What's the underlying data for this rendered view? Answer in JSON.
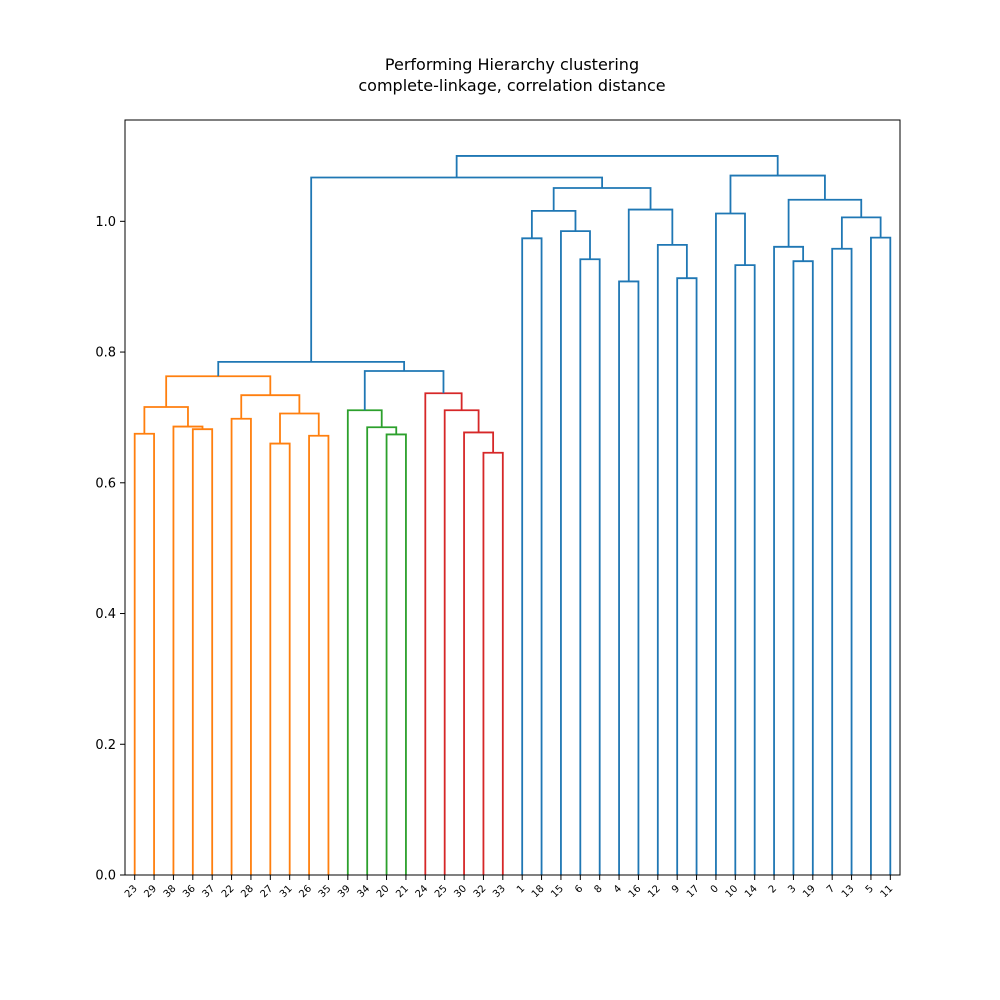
{
  "chart_data": {
    "type": "dendrogram",
    "title": [
      "Performing Hierarchy clustering",
      "complete-linkage, correlation distance"
    ],
    "xlabel": "",
    "ylabel": "",
    "ylim": [
      0,
      1.155
    ],
    "yticks": [
      0.0,
      0.2,
      0.4,
      0.6,
      0.8,
      1.0
    ],
    "ytick_labels": [
      "0.0",
      "0.2",
      "0.4",
      "0.6",
      "0.8",
      "1.0"
    ],
    "grid": false,
    "leaf_order": [
      "23",
      "29",
      "38",
      "36",
      "37",
      "22",
      "28",
      "27",
      "31",
      "26",
      "35",
      "39",
      "34",
      "20",
      "21",
      "24",
      "25",
      "30",
      "32",
      "33",
      "1",
      "18",
      "15",
      "6",
      "8",
      "4",
      "16",
      "12",
      "9",
      "17",
      "0",
      "10",
      "14",
      "2",
      "3",
      "19",
      "7",
      "13",
      "5",
      "11"
    ],
    "colors": {
      "orange": "#ff7f0e",
      "green": "#2ca02c",
      "red": "#d62728",
      "blue": "#1f77b4",
      "axis": "#000000"
    },
    "merges": [
      {
        "id": "m1",
        "left": "23",
        "right": "29",
        "height": 0.675,
        "color": "orange"
      },
      {
        "id": "m2",
        "left": "36",
        "right": "37",
        "height": 0.682,
        "color": "orange"
      },
      {
        "id": "m3",
        "left": "38",
        "right": "m2",
        "height": 0.686,
        "color": "orange"
      },
      {
        "id": "m4",
        "left": "m1",
        "right": "m3",
        "height": 0.716,
        "color": "orange"
      },
      {
        "id": "m5",
        "left": "22",
        "right": "28",
        "height": 0.698,
        "color": "orange"
      },
      {
        "id": "m6",
        "left": "27",
        "right": "31",
        "height": 0.66,
        "color": "orange"
      },
      {
        "id": "m7",
        "left": "26",
        "right": "35",
        "height": 0.672,
        "color": "orange"
      },
      {
        "id": "m8",
        "left": "m6",
        "right": "m7",
        "height": 0.706,
        "color": "orange"
      },
      {
        "id": "m9",
        "left": "m5",
        "right": "m8",
        "height": 0.734,
        "color": "orange"
      },
      {
        "id": "m10",
        "left": "m4",
        "right": "m9",
        "height": 0.763,
        "color": "orange"
      },
      {
        "id": "m11",
        "left": "20",
        "right": "21",
        "height": 0.674,
        "color": "green"
      },
      {
        "id": "m12",
        "left": "34",
        "right": "m11",
        "height": 0.685,
        "color": "green"
      },
      {
        "id": "m13",
        "left": "39",
        "right": "m12",
        "height": 0.711,
        "color": "green"
      },
      {
        "id": "m14",
        "left": "32",
        "right": "33",
        "height": 0.646,
        "color": "red"
      },
      {
        "id": "m15",
        "left": "30",
        "right": "m14",
        "height": 0.677,
        "color": "red"
      },
      {
        "id": "m16",
        "left": "25",
        "right": "m15",
        "height": 0.711,
        "color": "red"
      },
      {
        "id": "m17",
        "left": "24",
        "right": "m16",
        "height": 0.737,
        "color": "red"
      },
      {
        "id": "m18",
        "left": "m13",
        "right": "m17",
        "height": 0.771,
        "color": "blue"
      },
      {
        "id": "m19",
        "left": "m10",
        "right": "m18",
        "height": 0.785,
        "color": "blue"
      },
      {
        "id": "m20",
        "left": "1",
        "right": "18",
        "height": 0.974,
        "color": "blue"
      },
      {
        "id": "m21",
        "left": "6",
        "right": "8",
        "height": 0.942,
        "color": "blue"
      },
      {
        "id": "m22",
        "left": "15",
        "right": "m21",
        "height": 0.985,
        "color": "blue"
      },
      {
        "id": "m23",
        "left": "m20",
        "right": "m22",
        "height": 1.016,
        "color": "blue"
      },
      {
        "id": "m24",
        "left": "4",
        "right": "16",
        "height": 0.908,
        "color": "blue"
      },
      {
        "id": "m25",
        "left": "9",
        "right": "17",
        "height": 0.913,
        "color": "blue"
      },
      {
        "id": "m26",
        "left": "12",
        "right": "m25",
        "height": 0.964,
        "color": "blue"
      },
      {
        "id": "m27",
        "left": "m24",
        "right": "m26",
        "height": 1.018,
        "color": "blue"
      },
      {
        "id": "m28",
        "left": "m23",
        "right": "m27",
        "height": 1.051,
        "color": "blue"
      },
      {
        "id": "m29",
        "left": "m19",
        "right": "m28",
        "height": 1.067,
        "color": "blue"
      },
      {
        "id": "m30",
        "left": "10",
        "right": "14",
        "height": 0.933,
        "color": "blue"
      },
      {
        "id": "m31",
        "left": "0",
        "right": "m30",
        "height": 1.012,
        "color": "blue"
      },
      {
        "id": "m32",
        "left": "3",
        "right": "19",
        "height": 0.939,
        "color": "blue"
      },
      {
        "id": "m33",
        "left": "2",
        "right": "m32",
        "height": 0.961,
        "color": "blue"
      },
      {
        "id": "m34",
        "left": "7",
        "right": "13",
        "height": 0.958,
        "color": "blue"
      },
      {
        "id": "m35",
        "left": "5",
        "right": "11",
        "height": 0.975,
        "color": "blue"
      },
      {
        "id": "m36",
        "left": "m34",
        "right": "m35",
        "height": 1.006,
        "color": "blue"
      },
      {
        "id": "m37",
        "left": "m33",
        "right": "m36",
        "height": 1.033,
        "color": "blue"
      },
      {
        "id": "m38",
        "left": "m31",
        "right": "m37",
        "height": 1.07,
        "color": "blue"
      },
      {
        "id": "m39",
        "left": "m29",
        "right": "m38",
        "height": 1.1,
        "color": "blue"
      }
    ]
  }
}
